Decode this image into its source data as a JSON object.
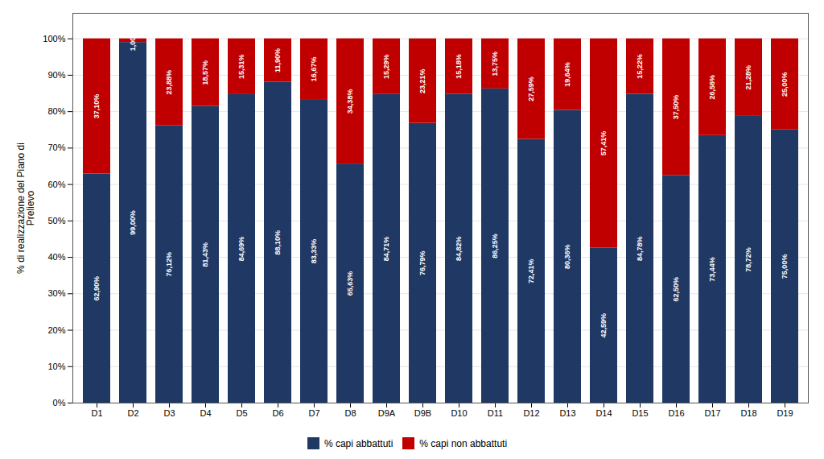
{
  "chart_data": {
    "type": "bar",
    "stacked": true,
    "data_labels": true,
    "grid": true,
    "legend": "bottom",
    "ylabel": "% di realizzazione del Piano di\nPrelievo",
    "categories": [
      "D1",
      "D2",
      "D3",
      "D4",
      "D5",
      "D6",
      "D7",
      "D8",
      "D9A",
      "D9B",
      "D10",
      "D11",
      "D12",
      "D13",
      "D14",
      "D15",
      "D16",
      "D17",
      "D18",
      "D19"
    ],
    "series": [
      {
        "name": "% capi abbattuti",
        "color": "#1F3864",
        "values": [
          62.9,
          99.0,
          76.12,
          81.43,
          84.69,
          88.1,
          83.33,
          65.63,
          84.71,
          76.79,
          84.82,
          86.25,
          72.41,
          80.36,
          42.59,
          84.78,
          62.5,
          73.44,
          78.72,
          75.0
        ],
        "value_labels": [
          "62,90%",
          "99,00%",
          "76,12%",
          "81,43%",
          "84,69%",
          "88,10%",
          "83,33%",
          "65,63%",
          "84,71%",
          "76,79%",
          "84,82%",
          "86,25%",
          "72,41%",
          "80,36%",
          "42,59%",
          "84,78%",
          "62,50%",
          "73,44%",
          "78,72%",
          "75,00%"
        ]
      },
      {
        "name": "% capi non abbattuti",
        "color": "#C00000",
        "values": [
          37.1,
          1.0,
          23.88,
          18.57,
          15.31,
          11.9,
          16.67,
          34.38,
          15.29,
          23.21,
          15.18,
          13.75,
          27.59,
          19.64,
          57.41,
          15.22,
          37.5,
          26.56,
          21.28,
          25.0
        ],
        "value_labels": [
          "37,10%",
          "1,00%",
          "23,88%",
          "18,57%",
          "15,31%",
          "11,90%",
          "16,67%",
          "34,38%",
          "15,29%",
          "23,21%",
          "15,18%",
          "13,75%",
          "27,59%",
          "19,64%",
          "57,41%",
          "15,22%",
          "37,50%",
          "26,56%",
          "21,28%",
          "25,00%"
        ]
      }
    ],
    "ylim": [
      0,
      107
    ],
    "yticks": [
      {
        "value": 0,
        "label": "0%"
      },
      {
        "value": 10,
        "label": "10%"
      },
      {
        "value": 20,
        "label": "20%"
      },
      {
        "value": 30,
        "label": "30%"
      },
      {
        "value": 40,
        "label": "40%"
      },
      {
        "value": 50,
        "label": "50%"
      },
      {
        "value": 60,
        "label": "60%"
      },
      {
        "value": 70,
        "label": "70%"
      },
      {
        "value": 80,
        "label": "80%"
      },
      {
        "value": 90,
        "label": "90%"
      },
      {
        "value": 100,
        "label": "100%"
      }
    ]
  }
}
